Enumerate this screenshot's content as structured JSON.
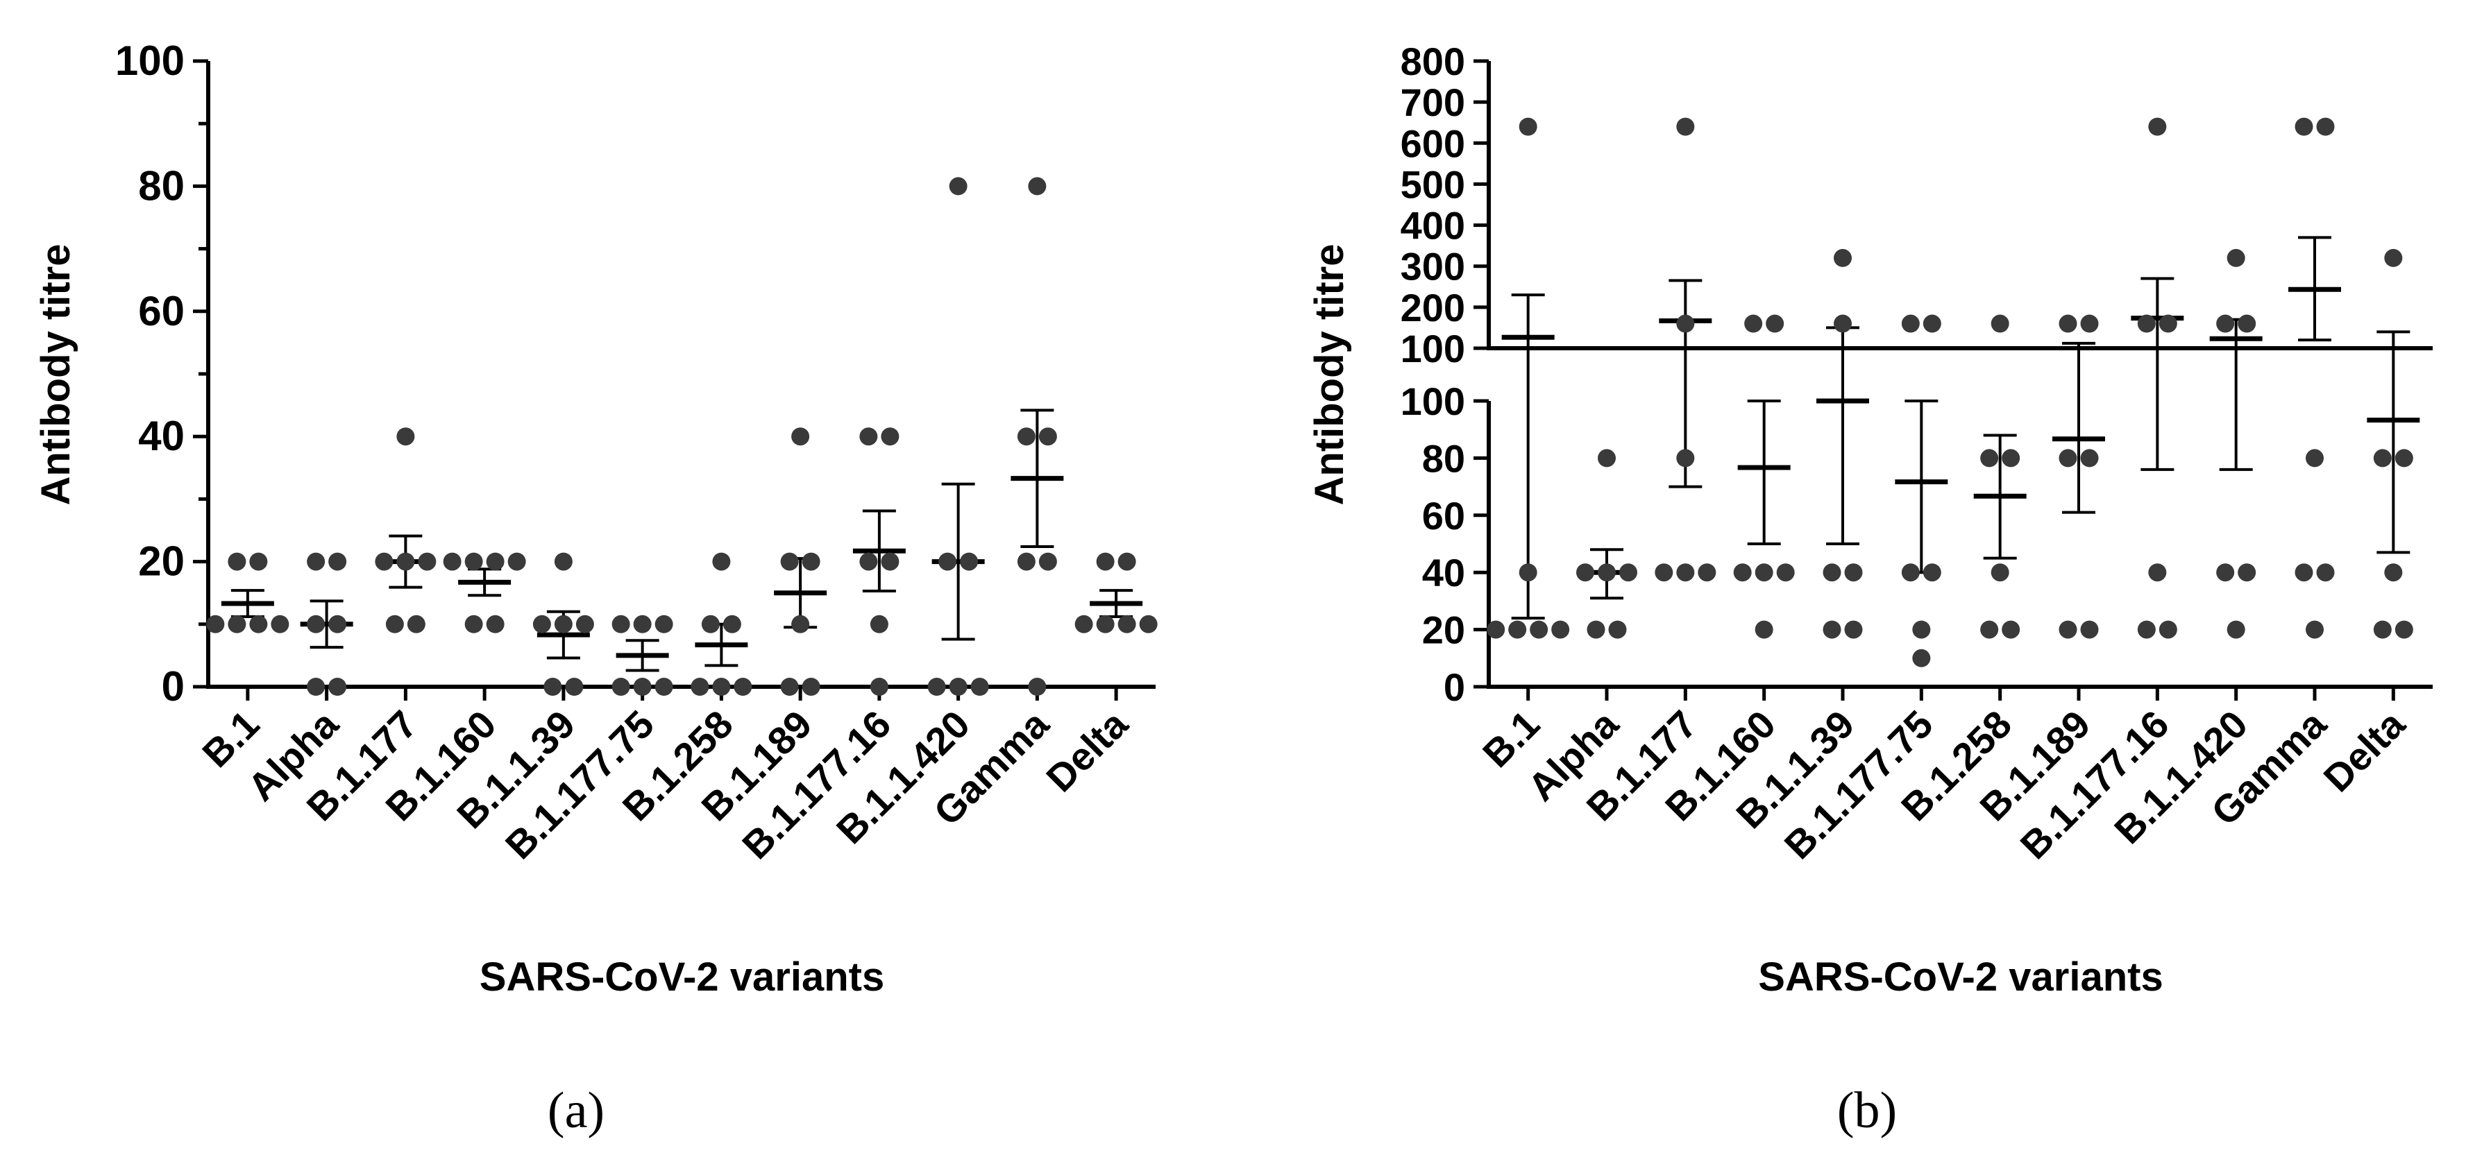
{
  "chart_data": [
    {
      "type": "scatter",
      "caption": "(a)",
      "ylabel": "Antibody titre",
      "xlabel": "SARS-CoV-2 variants",
      "ylim": [
        0,
        100
      ],
      "yticks": [
        "0",
        "20",
        "40",
        "60",
        "80",
        "100"
      ],
      "categories": [
        "B.1",
        "Alpha",
        "B.1.177",
        "B.1.160",
        "B.1.1.39",
        "B.1.177.75",
        "B.1.258",
        "B.1.189",
        "B.1.177.16",
        "B.1.1.420",
        "Gamma",
        "Delta"
      ],
      "points": [
        [
          10,
          10,
          10,
          10,
          20,
          20
        ],
        [
          0,
          0,
          10,
          10,
          20,
          20
        ],
        [
          10,
          10,
          20,
          20,
          20,
          40
        ],
        [
          10,
          10,
          20,
          20,
          20,
          20
        ],
        [
          0,
          0,
          10,
          10,
          10,
          20
        ],
        [
          0,
          0,
          0,
          10,
          10,
          10
        ],
        [
          0,
          0,
          0,
          10,
          10,
          20
        ],
        [
          0,
          0,
          10,
          20,
          20,
          40
        ],
        [
          0,
          10,
          20,
          20,
          40,
          40
        ],
        [
          0,
          0,
          0,
          20,
          20,
          80
        ],
        [
          0,
          20,
          20,
          40,
          40,
          80
        ],
        [
          10,
          10,
          10,
          10,
          20,
          20
        ]
      ],
      "mean": [
        13.3,
        10,
        20,
        16.7,
        8.3,
        5,
        6.7,
        15,
        21.7,
        20,
        33.3,
        13.3
      ],
      "error_low": [
        11.2,
        6.3,
        15.9,
        14.6,
        4.6,
        2.6,
        3.4,
        9.5,
        15.3,
        7.6,
        22.4,
        11.2
      ],
      "error_high": [
        15.4,
        13.7,
        24.1,
        18.8,
        12,
        7.4,
        10,
        20.5,
        28.1,
        32.4,
        44.2,
        15.4
      ]
    },
    {
      "type": "scatter",
      "caption": "(b)",
      "ylabel": "Antibody titre",
      "xlabel": "SARS-CoV-2 variants",
      "ylim": [
        0,
        800
      ],
      "axis_break": [
        100,
        100
      ],
      "yticks_lower": [
        "0",
        "20",
        "40",
        "60",
        "80",
        "100"
      ],
      "yticks_upper": [
        "100",
        "200",
        "300",
        "400",
        "500",
        "600",
        "700",
        "800"
      ],
      "categories": [
        "B.1",
        "Alpha",
        "B.1.177",
        "B.1.160",
        "B.1.1.39",
        "B.1.177.75",
        "B.1.258",
        "B.1.189",
        "B.1.177.16",
        "B.1.1.420",
        "Gamma",
        "Delta"
      ],
      "points": [
        [
          20,
          20,
          20,
          20,
          40,
          640
        ],
        [
          20,
          20,
          40,
          40,
          40,
          80
        ],
        [
          40,
          40,
          40,
          80,
          160,
          640
        ],
        [
          20,
          40,
          40,
          40,
          160,
          160
        ],
        [
          20,
          20,
          40,
          40,
          160,
          320
        ],
        [
          10,
          20,
          40,
          40,
          160,
          160
        ],
        [
          20,
          20,
          40,
          80,
          80,
          160
        ],
        [
          20,
          20,
          80,
          80,
          160,
          160
        ],
        [
          20,
          20,
          40,
          160,
          160,
          640
        ],
        [
          20,
          40,
          40,
          160,
          160,
          320
        ],
        [
          20,
          40,
          40,
          80,
          640,
          640
        ],
        [
          20,
          20,
          40,
          80,
          80,
          320
        ]
      ],
      "mean": [
        126.7,
        40,
        166.7,
        76.7,
        100,
        71.7,
        66.7,
        86.7,
        173.3,
        123.3,
        243.3,
        93.3
      ],
      "error_low": [
        24,
        31,
        70,
        50,
        50,
        40,
        45,
        61,
        76,
        76,
        120,
        47
      ],
      "error_high": [
        230,
        48,
        265,
        100,
        150,
        100,
        88,
        112,
        270,
        170,
        370,
        140
      ]
    }
  ]
}
